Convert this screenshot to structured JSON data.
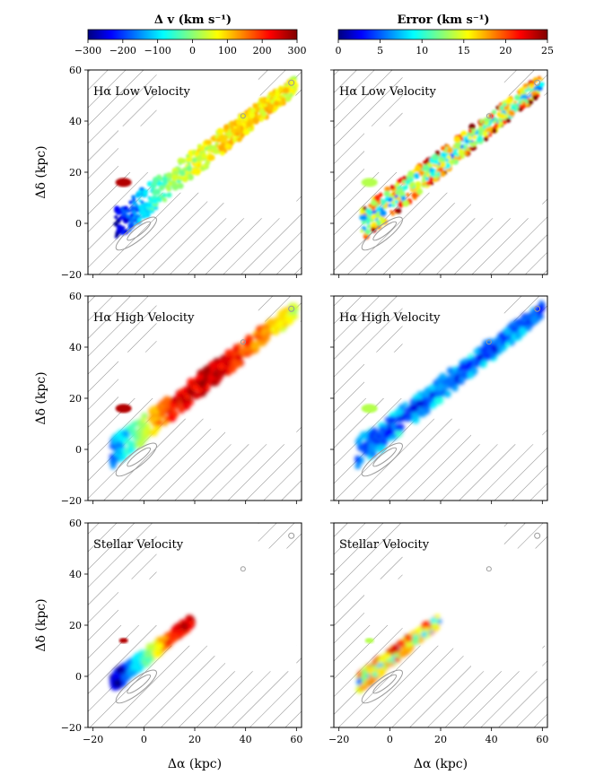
{
  "figure": {
    "colorbars": [
      {
        "id": "velocity",
        "label": "Δ v (km s⁻¹)",
        "ticks": [
          "−300",
          "−200",
          "−100",
          "0",
          "100",
          "200",
          "300"
        ],
        "range": [
          -300,
          300
        ],
        "cmap": "jet"
      },
      {
        "id": "error",
        "label": "Error (km s⁻¹)",
        "ticks": [
          "0",
          "5",
          "10",
          "15",
          "20",
          "25"
        ],
        "range": [
          0,
          25
        ],
        "cmap": "jet"
      }
    ],
    "xlabel": "Δα (kpc)",
    "ylabel": "Δδ (kpc)",
    "xticks": [
      "−20",
      "0",
      "20",
      "40",
      "60"
    ],
    "yticks": [
      "−20",
      "0",
      "20",
      "40",
      "60"
    ],
    "panels": [
      {
        "row": 0,
        "col": 0,
        "label": "Hα Low Velocity"
      },
      {
        "row": 0,
        "col": 1,
        "label": "Hα Low Velocity"
      },
      {
        "row": 1,
        "col": 0,
        "label": "Hα High Velocity"
      },
      {
        "row": 1,
        "col": 1,
        "label": "Hα High Velocity"
      },
      {
        "row": 2,
        "col": 0,
        "label": "Stellar Velocity"
      },
      {
        "row": 2,
        "col": 1,
        "label": "Stellar Velocity"
      }
    ]
  },
  "chart_data": {
    "type": "heatmap",
    "title": "",
    "xlabel": "Δα (kpc)",
    "ylabel": "Δδ (kpc)",
    "xlim": [
      -22,
      62
    ],
    "ylim": [
      -20,
      60
    ],
    "panels": [
      {
        "name": "Hα Low Velocity – velocity",
        "quantity": "Δ v",
        "units": "km s⁻¹",
        "trend": {
          "x": [
            -10,
            0,
            10,
            20,
            30,
            40,
            55,
            60
          ],
          "v": [
            -250,
            -100,
            0,
            50,
            80,
            100,
            80,
            60
          ]
        }
      },
      {
        "name": "Hα Low Velocity – error",
        "quantity": "Error",
        "units": "km s⁻¹",
        "typical_range": [
          0,
          25
        ]
      },
      {
        "name": "Hα High Velocity – velocity",
        "quantity": "Δ v",
        "units": "km s⁻¹",
        "trend": {
          "x": [
            -12,
            -5,
            0,
            10,
            20,
            30,
            45,
            60
          ],
          "v": [
            -150,
            -50,
            50,
            200,
            250,
            250,
            150,
            50
          ]
        }
      },
      {
        "name": "Hα High Velocity – error",
        "quantity": "Error",
        "units": "km s⁻¹",
        "typical_range": [
          0,
          10
        ]
      },
      {
        "name": "Stellar Velocity – velocity",
        "quantity": "Δ v",
        "units": "km s⁻¹",
        "trend": {
          "x": [
            -10,
            -5,
            0,
            10,
            18
          ],
          "v": [
            -250,
            -150,
            -50,
            200,
            250
          ]
        }
      },
      {
        "name": "Stellar Velocity – error",
        "quantity": "Error",
        "units": "km s⁻¹",
        "typical_range": [
          0,
          25
        ]
      }
    ]
  }
}
